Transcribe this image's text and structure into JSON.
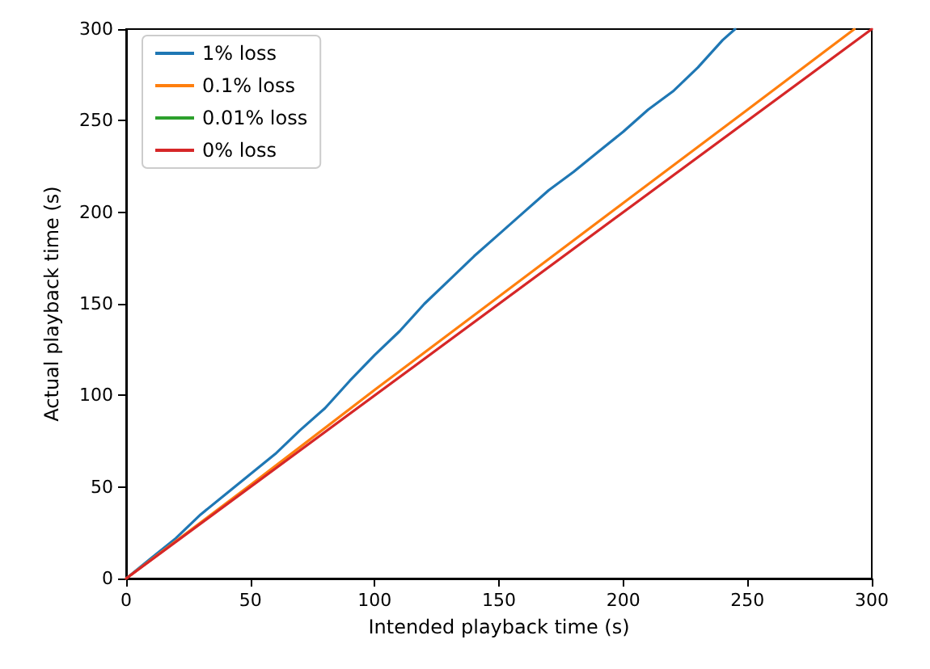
{
  "chart_data": {
    "type": "line",
    "xlabel": "Intended playback time (s)",
    "ylabel": "Actual playback time (s)",
    "xlim": [
      0,
      300
    ],
    "ylim": [
      0,
      300
    ],
    "xticks": [
      0,
      50,
      100,
      150,
      200,
      250,
      300
    ],
    "yticks": [
      0,
      50,
      100,
      150,
      200,
      250,
      300
    ],
    "grid": false,
    "legend": "top left",
    "marker": "none",
    "line_style": "solid",
    "series": [
      {
        "name": "1% loss",
        "color": "#1f77b4",
        "x": [
          0,
          10,
          20,
          30,
          40,
          50,
          60,
          70,
          80,
          90,
          100,
          110,
          120,
          130,
          140,
          150,
          160,
          170,
          180,
          190,
          200,
          210,
          220,
          230,
          240,
          245
        ],
        "values": [
          0,
          11,
          22,
          35,
          46,
          57,
          68,
          81,
          93,
          108,
          122,
          135,
          150,
          163,
          176,
          188,
          200,
          212,
          222,
          233,
          244,
          256,
          266,
          279,
          294,
          300
        ]
      },
      {
        "name": "0.1% loss",
        "color": "#ff7f0e",
        "x": [
          0,
          50,
          100,
          150,
          200,
          250,
          293
        ],
        "values": [
          0,
          51,
          103,
          154,
          205,
          256,
          300
        ]
      },
      {
        "name": "0.01% loss",
        "color": "#2ca02c"
      },
      {
        "name": "0% loss",
        "color": "#d62728",
        "x": [
          0,
          300
        ],
        "values": [
          0,
          300
        ]
      }
    ]
  }
}
